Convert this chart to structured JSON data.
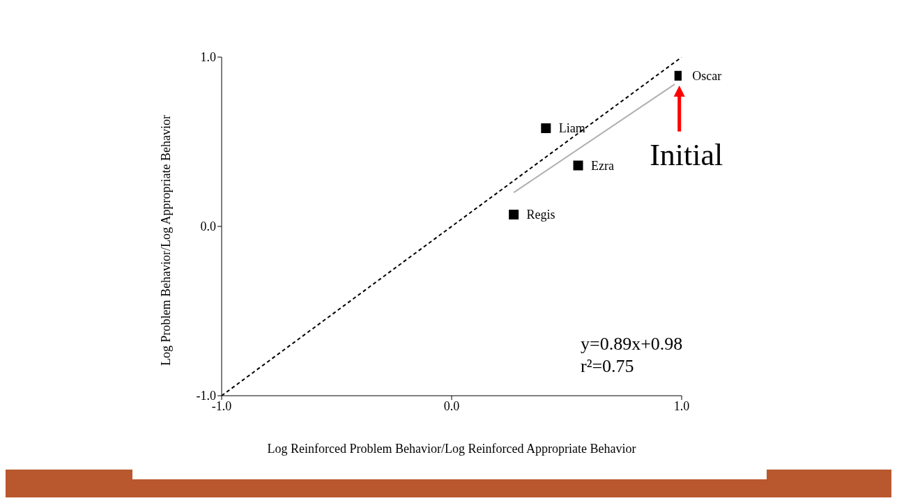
{
  "chart_data": {
    "type": "scatter",
    "xlabel": "Log Reinforced Problem Behavior/Log Reinforced Appropriate Behavior",
    "ylabel": "Log Problem Behavior/Log Appropriate Behavior",
    "xlim": [
      -1,
      1
    ],
    "ylim": [
      -1,
      1
    ],
    "xticks": [
      {
        "value": -1,
        "label": "-1.0"
      },
      {
        "value": 0,
        "label": "0.0"
      },
      {
        "value": 1,
        "label": "1.0"
      }
    ],
    "yticks": [
      {
        "value": -1,
        "label": "-1.0"
      },
      {
        "value": 0,
        "label": "0.0"
      },
      {
        "value": 1,
        "label": "1.0"
      }
    ],
    "marker": "square",
    "series": [
      {
        "name": "Oscar",
        "color": "#000000",
        "x": [
          0.99
        ],
        "values": [
          0.89
        ]
      },
      {
        "name": "Liam",
        "color": "#000000",
        "x": [
          0.41
        ],
        "values": [
          0.58
        ]
      },
      {
        "name": "Ezra",
        "color": "#000000",
        "x": [
          0.55
        ],
        "values": [
          0.36
        ]
      },
      {
        "name": "Regis",
        "color": "#000000",
        "x": [
          0.27
        ],
        "values": [
          0.07
        ]
      },
      {
        "type": "line",
        "color": "#000000",
        "line_style": "dashed",
        "marker": "none",
        "x": [
          -1,
          1
        ],
        "values": [
          -1,
          1
        ]
      },
      {
        "type": "line",
        "color": "#b0b0b0",
        "line_style": "solid",
        "marker": "none",
        "x": [
          0.27,
          0.97
        ],
        "values": [
          0.2,
          0.84
        ]
      }
    ],
    "annotations": [
      "y=0.89x+0.98",
      "r²=0.75",
      {
        "text": "Initial",
        "x": 0.99,
        "y": 0.89
      }
    ]
  }
}
